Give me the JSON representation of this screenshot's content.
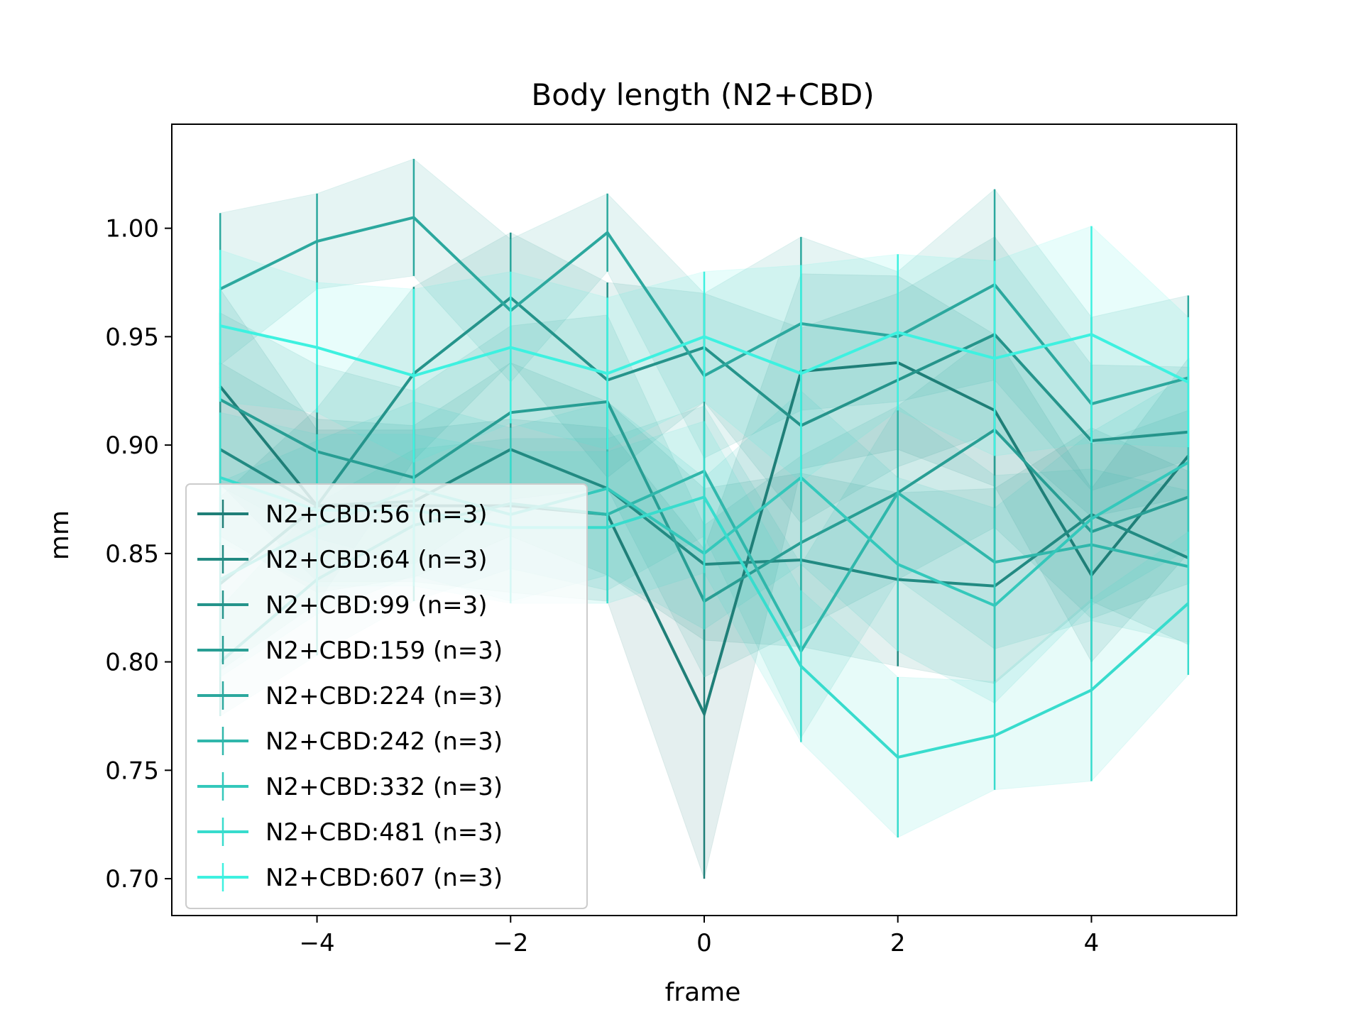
{
  "chart_data": {
    "type": "line",
    "title": "Body length (N2+CBD)",
    "xlabel": "frame",
    "ylabel": "mm",
    "xlim": [
      -5.5,
      5.5
    ],
    "ylim": [
      0.683,
      1.048
    ],
    "x_ticks": [
      -4,
      -2,
      0,
      2,
      4
    ],
    "x_tick_labels": [
      "−4",
      "−2",
      "0",
      "2",
      "4"
    ],
    "y_ticks": [
      0.7,
      0.75,
      0.8,
      0.85,
      0.9,
      0.95,
      1.0
    ],
    "y_tick_labels": [
      "0.70",
      "0.75",
      "0.80",
      "0.85",
      "0.90",
      "0.95",
      "1.00"
    ],
    "grid": false,
    "legend_position": "lower-left",
    "x": [
      -5,
      -4,
      -3,
      -2,
      -1,
      0,
      1,
      2,
      3,
      4,
      5
    ],
    "series": [
      {
        "name": "N2+CBD:56 (n=3)",
        "color": "#1f7f78",
        "values": [
          0.927,
          0.872,
          0.872,
          0.872,
          0.868,
          0.776,
          0.934,
          0.938,
          0.916,
          0.84,
          0.895
        ],
        "errors": [
          0.045,
          0.035,
          0.035,
          0.04,
          0.04,
          0.076,
          0.045,
          0.04,
          0.035,
          0.04,
          0.045
        ]
      },
      {
        "name": "N2+CBD:64 (n=3)",
        "color": "#228a82",
        "values": [
          0.898,
          0.872,
          0.874,
          0.898,
          0.88,
          0.845,
          0.847,
          0.838,
          0.835,
          0.868,
          0.848
        ],
        "errors": [
          0.04,
          0.04,
          0.035,
          0.04,
          0.04,
          0.035,
          0.04,
          0.04,
          0.045,
          0.04,
          0.04
        ]
      },
      {
        "name": "N2+CBD:99 (n=3)",
        "color": "#25948b",
        "values": [
          0.836,
          0.872,
          0.933,
          0.968,
          0.93,
          0.945,
          0.909,
          0.93,
          0.951,
          0.902,
          0.906
        ],
        "errors": [
          0.04,
          0.045,
          0.04,
          0.03,
          0.045,
          0.025,
          0.045,
          0.04,
          0.045,
          0.035,
          0.03
        ]
      },
      {
        "name": "N2+CBD:159 (n=3)",
        "color": "#289e94",
        "values": [
          0.921,
          0.897,
          0.885,
          0.915,
          0.92,
          0.828,
          0.855,
          0.878,
          0.907,
          0.86,
          0.876
        ],
        "errors": [
          0.04,
          0.04,
          0.04,
          0.04,
          0.04,
          0.035,
          0.04,
          0.04,
          0.045,
          0.04,
          0.04
        ]
      },
      {
        "name": "N2+CBD:224 (n=3)",
        "color": "#2ca89e",
        "values": [
          0.972,
          0.994,
          1.005,
          0.962,
          0.998,
          0.932,
          0.956,
          0.95,
          0.974,
          0.919,
          0.931
        ],
        "errors": [
          0.035,
          0.022,
          0.027,
          0.033,
          0.018,
          0.038,
          0.04,
          0.03,
          0.044,
          0.04,
          0.038
        ]
      },
      {
        "name": "N2+CBD:242 (n=3)",
        "color": "#30b7ab",
        "values": [
          0.8,
          0.838,
          0.863,
          0.873,
          0.868,
          0.888,
          0.805,
          0.878,
          0.846,
          0.854,
          0.844
        ],
        "errors": [
          0.025,
          0.035,
          0.035,
          0.03,
          0.035,
          0.03,
          0.04,
          0.04,
          0.04,
          0.035,
          0.035
        ]
      },
      {
        "name": "N2+CBD:332 (n=3)",
        "color": "#34c8bb",
        "values": [
          0.838,
          0.862,
          0.88,
          0.868,
          0.88,
          0.85,
          0.885,
          0.845,
          0.826,
          0.866,
          0.892
        ],
        "errors": [
          0.045,
          0.04,
          0.04,
          0.04,
          0.04,
          0.035,
          0.04,
          0.04,
          0.045,
          0.04,
          0.04
        ]
      },
      {
        "name": "N2+CBD:481 (n=3)",
        "color": "#38dccd",
        "values": [
          0.885,
          0.87,
          0.87,
          0.862,
          0.862,
          0.876,
          0.798,
          0.756,
          0.766,
          0.787,
          0.827
        ],
        "errors": [
          0.03,
          0.035,
          0.035,
          0.035,
          0.035,
          0.035,
          0.035,
          0.037,
          0.025,
          0.042,
          0.033
        ]
      },
      {
        "name": "N2+CBD:607 (n=3)",
        "color": "#3ef1e0",
        "values": [
          0.955,
          0.945,
          0.932,
          0.945,
          0.933,
          0.95,
          0.933,
          0.952,
          0.94,
          0.951,
          0.929
        ],
        "errors": [
          0.035,
          0.03,
          0.04,
          0.035,
          0.035,
          0.03,
          0.05,
          0.036,
          0.045,
          0.05,
          0.03
        ]
      }
    ]
  }
}
